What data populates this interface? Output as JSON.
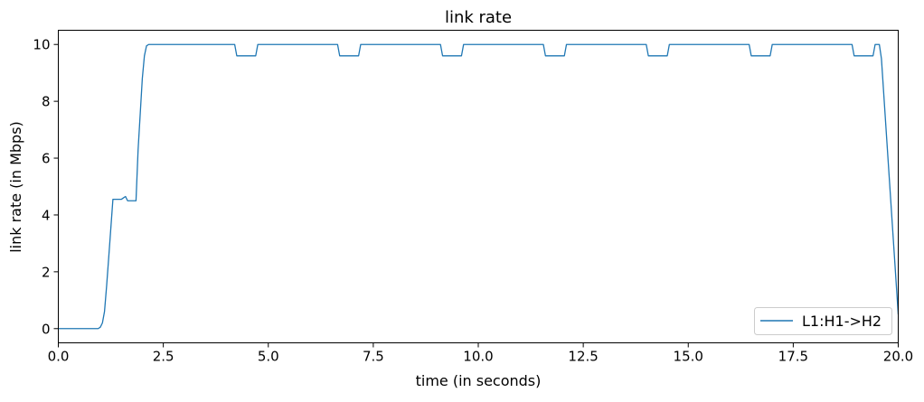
{
  "chart_data": {
    "type": "line",
    "title": "link rate",
    "xlabel": "time (in seconds)",
    "ylabel": "link rate (in Mbps)",
    "xlim": [
      0,
      20
    ],
    "ylim": [
      -0.5,
      10.5
    ],
    "xticks": [
      0,
      2.5,
      5,
      7.5,
      10,
      12.5,
      15,
      17.5,
      20
    ],
    "xtick_labels": [
      "0.0",
      "2.5",
      "5.0",
      "7.5",
      "10.0",
      "12.5",
      "15.0",
      "17.5",
      "20.0"
    ],
    "yticks": [
      0,
      2,
      4,
      6,
      8,
      10
    ],
    "ytick_labels": [
      "0",
      "2",
      "4",
      "6",
      "8",
      "10"
    ],
    "grid": false,
    "legend_position": "lower-right",
    "series": [
      {
        "name": "L1:H1->H2",
        "color": "#1f77b4",
        "x": [
          0,
          0.95,
          1.0,
          1.05,
          1.1,
          1.15,
          1.2,
          1.3,
          1.5,
          1.55,
          1.6,
          1.65,
          1.7,
          1.85,
          1.9,
          2.0,
          2.05,
          2.1,
          2.15,
          2.2,
          4.2,
          4.25,
          4.7,
          4.75,
          6.65,
          6.7,
          7.15,
          7.2,
          9.1,
          9.15,
          9.6,
          9.65,
          11.55,
          11.6,
          12.05,
          12.1,
          14.0,
          14.05,
          14.5,
          14.55,
          16.45,
          16.5,
          16.95,
          17.0,
          18.9,
          18.95,
          19.4,
          19.45,
          19.55,
          19.6,
          20.0
        ],
        "y": [
          0,
          0,
          0.05,
          0.2,
          0.6,
          1.5,
          2.5,
          4.55,
          4.55,
          4.6,
          4.65,
          4.5,
          4.5,
          4.5,
          6.3,
          8.8,
          9.6,
          9.95,
          10,
          10,
          10,
          9.6,
          9.6,
          10,
          10,
          9.6,
          9.6,
          10,
          10,
          9.6,
          9.6,
          10,
          10,
          9.6,
          9.6,
          10,
          10,
          9.6,
          9.6,
          10,
          10,
          9.6,
          9.6,
          10,
          10,
          9.6,
          9.6,
          10,
          10,
          9.5,
          0.5
        ]
      }
    ]
  }
}
